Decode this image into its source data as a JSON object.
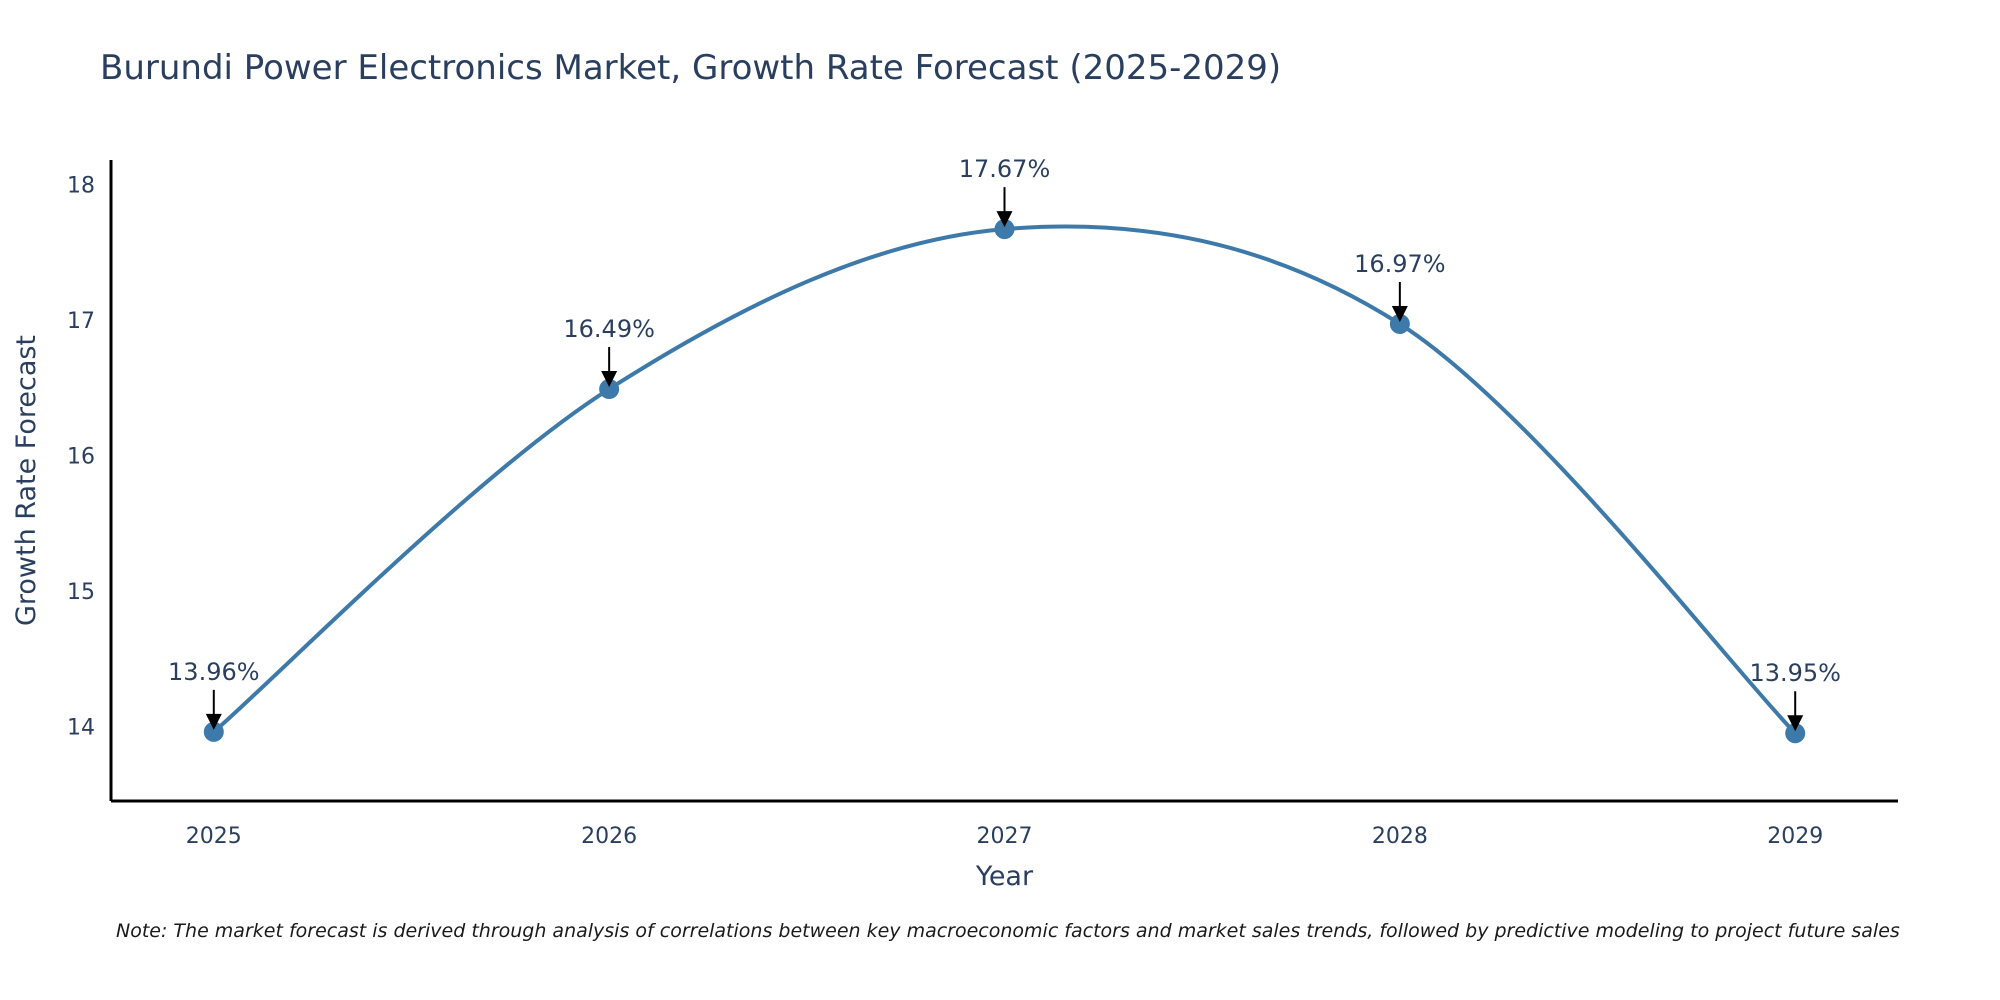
{
  "chart_data": {
    "type": "line",
    "title": "Burundi Power Electronics Market, Growth Rate Forecast (2025-2029)",
    "xlabel": "Year",
    "ylabel": "Growth Rate Forecast",
    "categories": [
      "2025",
      "2026",
      "2027",
      "2028",
      "2029"
    ],
    "x": [
      2025,
      2026,
      2027,
      2028,
      2029
    ],
    "values": [
      13.96,
      16.49,
      17.67,
      16.97,
      13.95
    ],
    "data_labels": [
      "13.96%",
      "16.49%",
      "17.67%",
      "16.97%",
      "13.95%"
    ],
    "xlim": [
      2024.74,
      2029.26
    ],
    "ylim": [
      13.45,
      18.18
    ],
    "yticks": [
      14,
      15,
      16,
      17,
      18
    ],
    "grid": false,
    "line_shape": "spline",
    "line_color": "#3d7aaa",
    "marker_color": "#3d7aaa",
    "arrow_color": "#000000",
    "axis_color": "#000000",
    "note": "Note: The market forecast is derived through analysis of correlations between key macroeconomic factors and market sales trends, followed by predictive modeling to project future sales"
  }
}
